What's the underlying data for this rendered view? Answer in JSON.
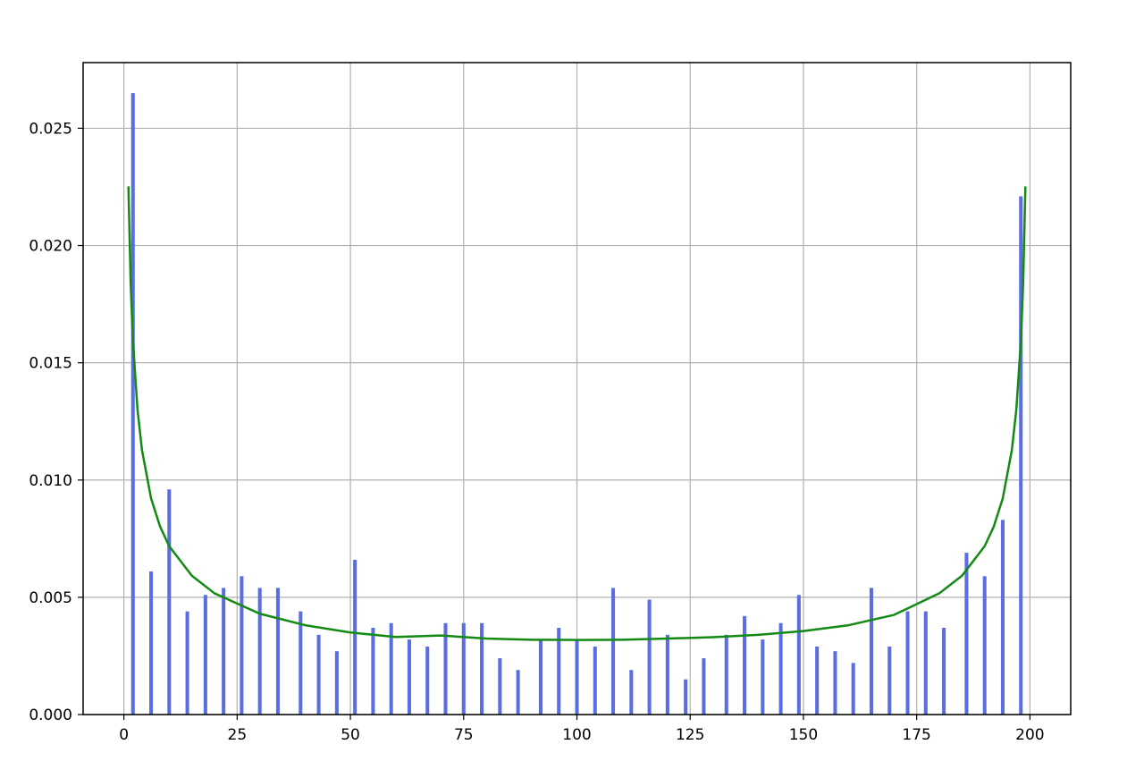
{
  "chart_data": {
    "type": "bar",
    "title": "",
    "xlabel": "",
    "ylabel": "",
    "xlim": [
      -9,
      209
    ],
    "ylim": [
      0,
      0.0278
    ],
    "grid": true,
    "x_ticks": [
      0,
      25,
      50,
      75,
      100,
      125,
      150,
      175,
      200
    ],
    "x_tick_labels": [
      "0",
      "25",
      "50",
      "75",
      "100",
      "125",
      "150",
      "175",
      "200"
    ],
    "y_ticks": [
      0,
      0.005,
      0.01,
      0.015,
      0.02,
      0.025
    ],
    "y_tick_labels": [
      "0.000",
      "0.005",
      "0.010",
      "0.015",
      "0.020",
      "0.025"
    ],
    "colors": {
      "bars": "#5b6ee1",
      "curve": "#138a13",
      "grid": "#b0b0b0"
    },
    "series": [
      {
        "kind": "bar",
        "bar_width": 0.8,
        "x": [
          2,
          6,
          10,
          14,
          18,
          22,
          26,
          30,
          34,
          39,
          43,
          47,
          51,
          55,
          59,
          63,
          67,
          71,
          75,
          79,
          83,
          87,
          92,
          96,
          100,
          104,
          108,
          112,
          116,
          120,
          124,
          128,
          133,
          137,
          141,
          145,
          149,
          153,
          157,
          161,
          165,
          169,
          173,
          177,
          181,
          186,
          190,
          194,
          198
        ],
        "values": [
          0.0265,
          0.0061,
          0.0096,
          0.0044,
          0.0051,
          0.0054,
          0.0059,
          0.0054,
          0.0054,
          0.0044,
          0.0034,
          0.0027,
          0.0066,
          0.0037,
          0.0039,
          0.0032,
          0.0029,
          0.0039,
          0.0039,
          0.0039,
          0.0024,
          0.0019,
          0.0032,
          0.0037,
          0.0032,
          0.0029,
          0.0054,
          0.0019,
          0.0049,
          0.0034,
          0.0015,
          0.0024,
          0.0034,
          0.0042,
          0.0032,
          0.0039,
          0.0051,
          0.0029,
          0.0027,
          0.0022,
          0.0054,
          0.0029,
          0.0044,
          0.0044,
          0.0037,
          0.0069,
          0.0059,
          0.0083,
          0.0221
        ]
      },
      {
        "kind": "line",
        "x": [
          1,
          1.5,
          2,
          3,
          4,
          6,
          8,
          10,
          15,
          20,
          30,
          40,
          50,
          60,
          70,
          80,
          90,
          100,
          110,
          120,
          130,
          140,
          150,
          160,
          170,
          180,
          185,
          190,
          192,
          194,
          196,
          197,
          198,
          198.5,
          199
        ],
        "values": [
          0.02252,
          0.01839,
          0.01593,
          0.01301,
          0.01127,
          0.00922,
          0.00801,
          0.00718,
          0.00592,
          0.00517,
          0.0043,
          0.00381,
          0.0035,
          0.00331,
          0.00337,
          0.00324,
          0.00319,
          0.00318,
          0.00319,
          0.00324,
          0.0033,
          0.0034,
          0.00356,
          0.00381,
          0.00425,
          0.00517,
          0.00592,
          0.00718,
          0.00801,
          0.00922,
          0.01127,
          0.01301,
          0.01593,
          0.01839,
          0.02252
        ]
      }
    ]
  }
}
